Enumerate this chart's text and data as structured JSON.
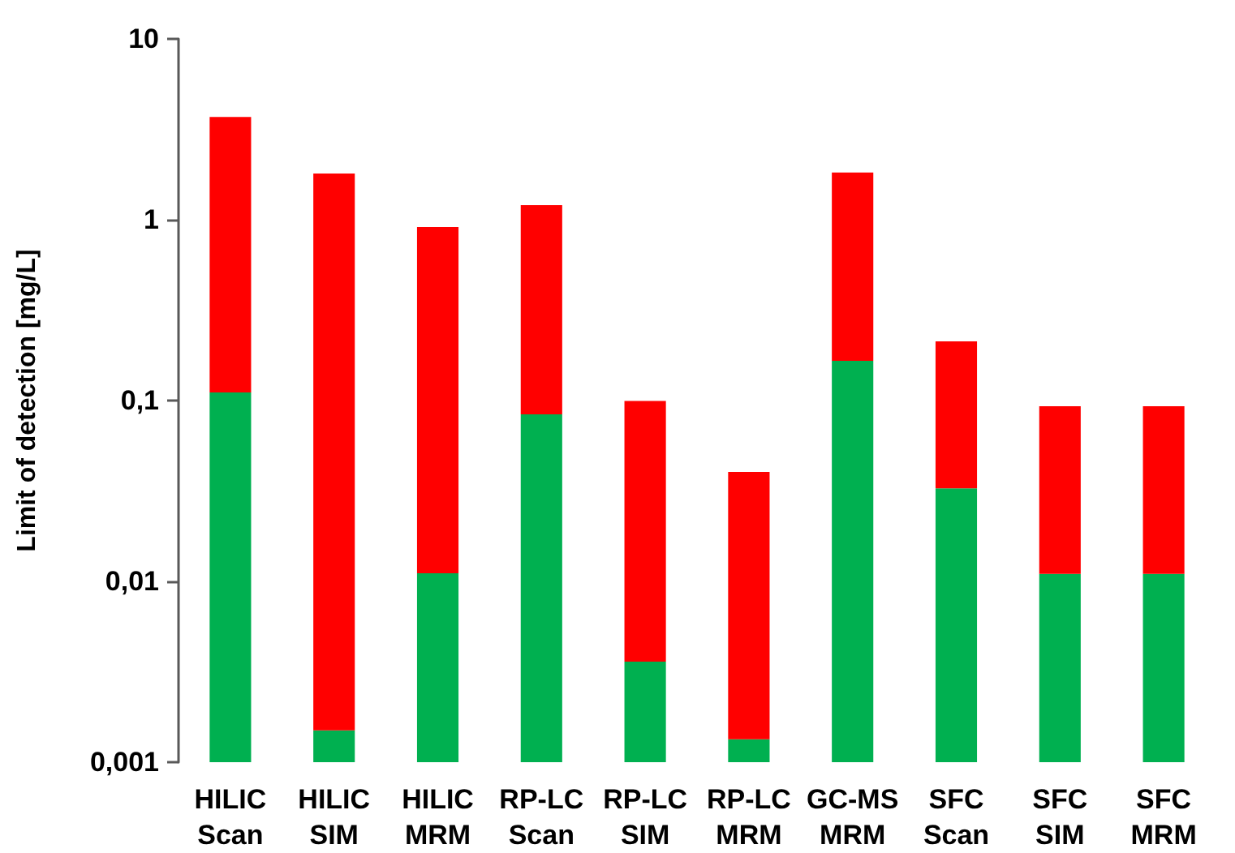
{
  "chart_data": {
    "type": "bar",
    "stacked": true,
    "log": "y",
    "ylabel": "Limit of detection [mg/L]",
    "categories": [
      "HILIC Scan",
      "HILIC SIM",
      "HILIC MRM",
      "RP-LC Scan",
      "RP-LC SIM",
      "RP-LC MRM",
      "GC-MS MRM",
      "SFC Scan",
      "SFC SIM",
      "SFC MRM"
    ],
    "series": [
      {
        "color": "#00b050",
        "values": [
          0.111,
          0.0015,
          0.0111,
          0.084,
          0.0036,
          0.00134,
          0.166,
          0.0327,
          0.011,
          0.011
        ]
      },
      {
        "color": "#ff0000",
        "values": [
          3.59,
          1.8,
          0.9,
          1.12,
          0.096,
          0.039,
          1.66,
          0.18,
          0.082,
          0.082
        ]
      }
    ],
    "ylim": [
      0.001,
      10
    ],
    "yticks": [
      {
        "value": 0.001,
        "label": "0,001"
      },
      {
        "value": 0.01,
        "label": "0,01"
      },
      {
        "value": 0.1,
        "label": "0,1"
      },
      {
        "value": 1,
        "label": "1"
      },
      {
        "value": 10,
        "label": "10"
      }
    ],
    "grid": false
  }
}
